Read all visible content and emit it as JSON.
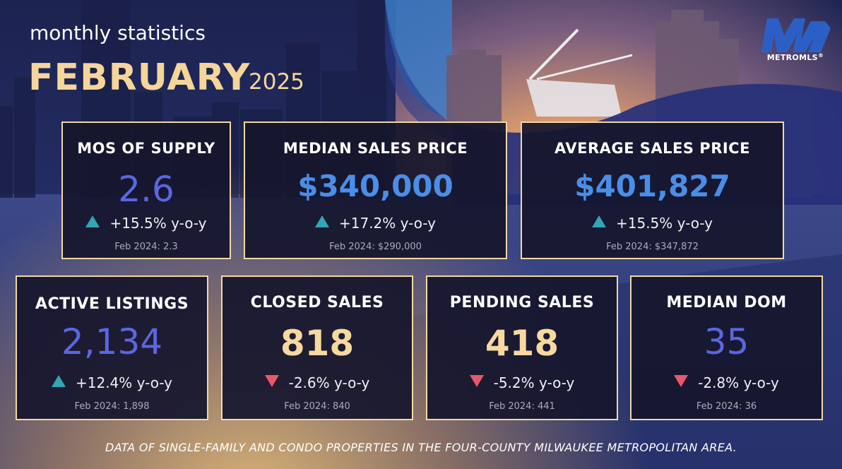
{
  "header": {
    "subtitle": "monthly statistics",
    "month": "FEBRUARY",
    "year": "2025"
  },
  "logo": {
    "brand": "METROMLS",
    "trademark": "®"
  },
  "stats": [
    {
      "title": "MOS OF SUPPLY",
      "value": "2.6",
      "direction": "up",
      "change": "+15.5% y-o-y",
      "previous": "Feb 2024: 2.3"
    },
    {
      "title": "MEDIAN SALES PRICE",
      "value": "$340,000",
      "direction": "up",
      "change": "+17.2% y-o-y",
      "previous": "Feb 2024: $290,000"
    },
    {
      "title": "AVERAGE SALES PRICE",
      "value": "$401,827",
      "direction": "up",
      "change": "+15.5% y-o-y",
      "previous": "Feb 2024: $347,872"
    },
    {
      "title": "ACTIVE LISTINGS",
      "value": "2,134",
      "direction": "up",
      "change": "+12.4% y-o-y",
      "previous": "Feb 2024: 1,898"
    },
    {
      "title": "CLOSED SALES",
      "value": "818",
      "direction": "down",
      "change": "-2.6% y-o-y",
      "previous": "Feb 2024: 840"
    },
    {
      "title": "PENDING SALES",
      "value": "418",
      "direction": "down",
      "change": "-5.2% y-o-y",
      "previous": "Feb 2024: 441"
    },
    {
      "title": "MEDIAN DOM",
      "value": "35",
      "direction": "down",
      "change": "-2.8% y-o-y",
      "previous": "Feb 2024: 36"
    }
  ],
  "colors": {
    "gold": "#f6d9a0",
    "blue": "#5b66e0",
    "light_blue": "#4a8ee8",
    "up_arrow": "#32a6b4",
    "down_arrow": "#e8576a",
    "card_border": "#f2d8a3"
  },
  "footer": {
    "note": "DATA OF SINGLE-FAMILY AND CONDO PROPERTIES IN THE FOUR-COUNTY MILWAUKEE METROPOLITAN AREA."
  }
}
